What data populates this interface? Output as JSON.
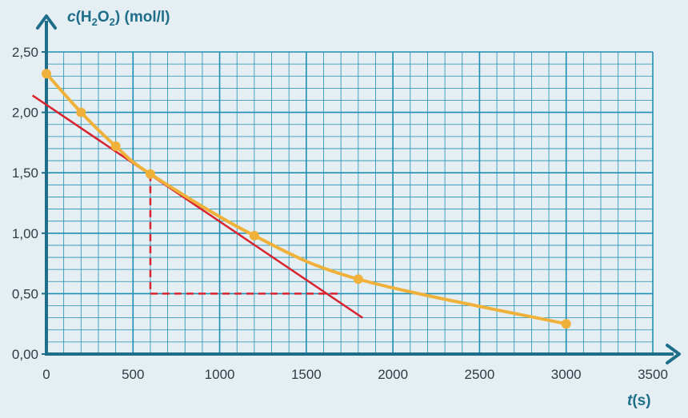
{
  "chart_data": {
    "type": "line",
    "x_axis": {
      "label_var": "t",
      "label_rest": "(s)",
      "range": [
        0,
        3500
      ],
      "ticks": [
        0,
        500,
        1000,
        1500,
        2000,
        2500,
        3000,
        3500
      ],
      "tick_labels": [
        "0",
        "500",
        "1000",
        "1500",
        "2000",
        "2500",
        "3000",
        "3500"
      ]
    },
    "y_axis": {
      "label_var": "c",
      "label_open": "(H",
      "label_sub1": "2",
      "label_mid": "O",
      "label_sub2": "2",
      "label_rest": ") (mol/l)",
      "range": [
        0,
        2.5
      ],
      "ticks": [
        0,
        0.5,
        1.0,
        1.5,
        2.0,
        2.5
      ],
      "tick_labels": [
        "0,00",
        "0,50",
        "1,00",
        "1,50",
        "2,00",
        "2,50"
      ]
    },
    "grid": true,
    "series": [
      {
        "kind": "measured",
        "color": "#f0b13a",
        "x": [
          0,
          200,
          400,
          600,
          1200,
          1800,
          3000
        ],
        "y": [
          2.32,
          2.0,
          1.72,
          1.49,
          0.98,
          0.62,
          0.25
        ]
      }
    ],
    "tangent": {
      "color": "#d9232f",
      "from": [
        -80,
        2.14
      ],
      "to": [
        1825,
        0.3
      ]
    },
    "construction": {
      "color": "#d9232f",
      "vertical": {
        "x": 600,
        "y_from": 1.49,
        "y_to": 0.5
      },
      "horizontal": {
        "y": 0.5,
        "x_from": 600,
        "x_to": 1700
      }
    },
    "colors": {
      "axis": "#1e6e8a",
      "grid": "#1e8fb2",
      "background": "#e4eef3"
    }
  }
}
